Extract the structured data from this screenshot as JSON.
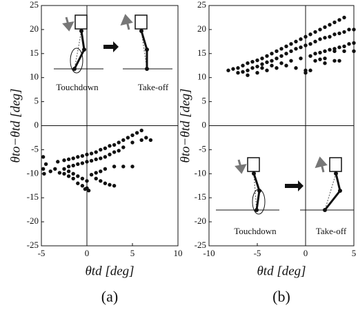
{
  "chart_data": [
    {
      "type": "scatter",
      "label": "(a)",
      "xlabel": "θtd [deg]",
      "ylabel": "θto−θtd [deg]",
      "annotations": [
        "Touchdown",
        "Take-off"
      ],
      "xlim": [
        -5,
        10
      ],
      "ylim": [
        -25,
        25
      ],
      "xticks": [
        -5,
        0,
        5,
        10
      ],
      "yticks": [
        -25,
        -20,
        -15,
        -10,
        -5,
        0,
        5,
        10,
        15,
        20,
        25
      ],
      "color": "#111111",
      "x": [
        -4.8,
        -4.5,
        -4.8,
        -4.7,
        -4,
        -3.5,
        -3,
        -2.5,
        -3.2,
        -2.5,
        -2,
        -1.5,
        -1,
        -0.5,
        0,
        0.5,
        1,
        1.5,
        2,
        2.5,
        3,
        3.5,
        4,
        4.5,
        5,
        5.5,
        6,
        6.5,
        -2,
        -1.5,
        -1,
        -0.5,
        0,
        0.5,
        1,
        1.5,
        2,
        2.5,
        3,
        3.5,
        4,
        5,
        6,
        7,
        -2.5,
        -2,
        -1.5,
        -1,
        -0.5,
        0,
        -1,
        -0.5,
        0,
        0.2,
        -0.2,
        0.5,
        1,
        1.5,
        2,
        3,
        4,
        5,
        1,
        1.5,
        2,
        2.5,
        3,
        -1.5,
        -2
      ],
      "values": [
        -6.5,
        -8,
        -9,
        -10,
        -9.5,
        -9,
        -9.8,
        -10,
        -7.5,
        -7.2,
        -7,
        -6.8,
        -6.5,
        -6.3,
        -6,
        -5.8,
        -5.5,
        -5,
        -4.7,
        -4.2,
        -4,
        -3.5,
        -3,
        -2.5,
        -2,
        -1.5,
        -1,
        -2.5,
        -8.5,
        -8.3,
        -8,
        -7.8,
        -7.5,
        -7.3,
        -7,
        -6.8,
        -6.5,
        -6,
        -5.5,
        -5.2,
        -4.5,
        -3.5,
        -3,
        -3,
        -9,
        -9.5,
        -10,
        -10.5,
        -11,
        -11.5,
        -12,
        -12.5,
        -13,
        -13.5,
        -13.2,
        -10.2,
        -9.8,
        -9.5,
        -9,
        -8.5,
        -8.5,
        -8.5,
        -11,
        -11.5,
        -12,
        -12.3,
        -12.5,
        -11,
        -10.5
      ]
    },
    {
      "type": "scatter",
      "label": "(b)",
      "xlabel": "θtd [deg]",
      "ylabel": "θto−θtd [deg]",
      "annotations": [
        "Touchdown",
        "Take-off"
      ],
      "xlim": [
        -10,
        5
      ],
      "ylim": [
        -25,
        25
      ],
      "xticks": [
        -10,
        -5,
        0,
        5
      ],
      "yticks": [
        -25,
        -20,
        -15,
        -10,
        -5,
        0,
        5,
        10,
        15,
        20,
        25
      ],
      "color": "#111111",
      "x": [
        -8,
        -7.5,
        -7,
        -6.5,
        -6,
        -5.5,
        -5,
        -4.5,
        -4,
        -3.5,
        -3,
        -2.5,
        -2,
        -1.5,
        -1,
        -0.5,
        0,
        0.5,
        1,
        1.5,
        2,
        2.5,
        3,
        3.5,
        4,
        -7,
        -6.5,
        -6,
        -5.5,
        -5,
        -4.5,
        -4,
        -3.5,
        -3,
        -2.5,
        -2,
        -1.5,
        -1,
        -0.5,
        0,
        0.5,
        1,
        1.5,
        2,
        2.5,
        3,
        3.5,
        4,
        4.5,
        5,
        -6,
        -5,
        -4,
        -3,
        -2,
        -1,
        0,
        0,
        0.5,
        -4.5,
        -3.5,
        -2.5,
        -1.5,
        -0.5,
        0.5,
        1,
        1.5,
        2,
        2.5,
        3,
        3.5,
        4,
        4.5,
        5,
        1,
        1.5,
        2,
        3,
        4,
        5,
        2,
        3,
        3.5
      ],
      "values": [
        11.5,
        11.8,
        12,
        12.5,
        13,
        13.3,
        13.6,
        14,
        14.5,
        15,
        15.5,
        16,
        16.5,
        17,
        17.5,
        18,
        18.5,
        19,
        19.5,
        20,
        20.5,
        21,
        21.5,
        22,
        22.5,
        11,
        11.2,
        11.5,
        12,
        12.3,
        12.8,
        13.2,
        13.5,
        14,
        14.5,
        15,
        15.5,
        16,
        16.3,
        16.7,
        17,
        17.5,
        18,
        18.3,
        18.5,
        19,
        19.2,
        19.5,
        20,
        20,
        10.5,
        11,
        11.5,
        12,
        12.5,
        12,
        11.5,
        11,
        11.5,
        12,
        12.5,
        13,
        13.5,
        14,
        14.5,
        15,
        15.2,
        15.5,
        15.8,
        16,
        16.3,
        16.5,
        17,
        17.2,
        13.5,
        13.8,
        14,
        15.5,
        15.5,
        15.5,
        13,
        13.5,
        13.5
      ]
    }
  ]
}
